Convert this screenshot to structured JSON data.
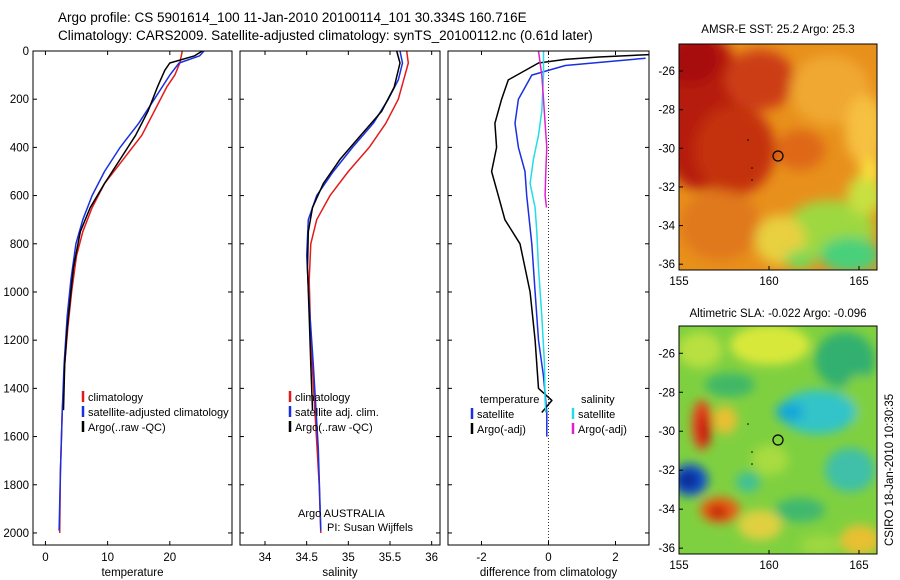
{
  "header": {
    "line1": "Argo profile: CS 5901614_100 11-Jan-2010 20100114_101 30.334S 160.716E",
    "line2": "Climatology: CARS2009. Satellite-adjusted climatology: synTS_20100112.nc (0.61d later)"
  },
  "colors": {
    "climatology": "#e31a1c",
    "satellite": "#1a2fe0",
    "argo": "#000000",
    "sal_satellite": "#22dde6",
    "sal_argo": "#e020d0"
  },
  "chart_data": [
    {
      "type": "line",
      "id": "temperature",
      "xlabel": "temperature",
      "ylabel": "",
      "xlim": [
        -2,
        30
      ],
      "ylim": [
        2050,
        0
      ],
      "y_reversed": true,
      "xticks": [
        "0",
        "10",
        "20"
      ],
      "yticks": [
        "0",
        "200",
        "400",
        "600",
        "800",
        "1000",
        "1200",
        "1400",
        "1600",
        "1800",
        "2000"
      ],
      "legend": [
        "climatology",
        "satellite-adjusted climatology",
        "Argo(..raw -QC)"
      ],
      "series": [
        {
          "name": "climatology",
          "color": "#e31a1c",
          "x": [
            22,
            21.6,
            20.8,
            19.5,
            17.5,
            15.5,
            12.5,
            9.5,
            7.5,
            6,
            5,
            4.2,
            3.6,
            3.1,
            2.7,
            2.4,
            2.3
          ],
          "y": [
            0,
            50,
            100,
            150,
            250,
            350,
            450,
            550,
            650,
            750,
            850,
            1000,
            1150,
            1300,
            1500,
            1750,
            2000
          ]
        },
        {
          "name": "satellite-adjusted climatology",
          "color": "#1a2fe0",
          "x": [
            25.5,
            24.8,
            21.5,
            20,
            17.5,
            15,
            12,
            9.5,
            7.5,
            6,
            4.9,
            4.1,
            3.5,
            3.0,
            2.7,
            2.4,
            2.2
          ],
          "y": [
            0,
            20,
            50,
            100,
            200,
            300,
            400,
            500,
            600,
            700,
            800,
            950,
            1100,
            1300,
            1500,
            1750,
            1990
          ]
        },
        {
          "name": "Argo(..raw -QC)",
          "color": "#000000",
          "x": [
            25.2,
            24,
            20,
            19.2,
            18,
            16.5,
            14.5,
            12,
            9.5,
            7.2,
            5.6,
            4.5,
            3.5,
            3.1,
            2.9
          ],
          "y": [
            0,
            20,
            50,
            80,
            150,
            250,
            350,
            450,
            550,
            650,
            750,
            900,
            1150,
            1300,
            1490
          ]
        }
      ]
    },
    {
      "type": "line",
      "id": "salinity",
      "xlabel": "salinity",
      "ylabel": "",
      "xlim": [
        33.7,
        36.1
      ],
      "ylim": [
        2050,
        0
      ],
      "y_reversed": true,
      "xticks": [
        "34",
        "34.5",
        "35",
        "35.5",
        "36"
      ],
      "legend": [
        "climatology",
        "satellite adj. clim.",
        "Argo(..raw -QC)"
      ],
      "annotation": [
        "Argo AUSTRALIA",
        "PI: Susan Wijffels"
      ],
      "series": [
        {
          "name": "climatology",
          "color": "#e31a1c",
          "x": [
            35.7,
            35.72,
            35.68,
            35.6,
            35.45,
            35.25,
            35.0,
            34.78,
            34.62,
            34.55,
            34.53,
            34.55,
            34.6,
            34.65,
            34.67
          ],
          "y": [
            0,
            50,
            100,
            200,
            300,
            400,
            500,
            600,
            700,
            800,
            950,
            1200,
            1500,
            1800,
            2000
          ]
        },
        {
          "name": "satellite adj. clim.",
          "color": "#1a2fe0",
          "x": [
            35.62,
            35.65,
            35.6,
            35.48,
            35.3,
            35.05,
            34.82,
            34.62,
            34.52,
            34.5,
            34.53,
            34.58,
            34.64,
            34.67
          ],
          "y": [
            0,
            50,
            120,
            200,
            300,
            400,
            500,
            600,
            700,
            850,
            1050,
            1300,
            1650,
            1990
          ]
        },
        {
          "name": "Argo(..raw -QC)",
          "color": "#000000",
          "x": [
            35.58,
            35.62,
            35.55,
            35.4,
            35.15,
            34.9,
            34.7,
            34.57,
            34.52,
            34.51,
            34.53,
            34.55,
            34.57
          ],
          "y": [
            0,
            50,
            150,
            250,
            350,
            450,
            550,
            650,
            750,
            900,
            1100,
            1300,
            1490
          ]
        }
      ]
    },
    {
      "type": "line",
      "id": "difference",
      "xlabel": "difference from climatology",
      "ylabel": "",
      "xlim": [
        -3,
        3
      ],
      "ylim": [
        2050,
        0
      ],
      "y_reversed": true,
      "xticks": [
        "-2",
        "0",
        "2"
      ],
      "legend_temperature": [
        "temperature",
        "satellite",
        "Argo(-adj)"
      ],
      "legend_salinity": [
        "salinity",
        "satellite",
        "Argo(-adj)"
      ],
      "series": [
        {
          "name": "temperature satellite",
          "color": "#1a2fe0",
          "x": [
            2.9,
            0.5,
            -0.5,
            -0.9,
            -1.0,
            -0.9,
            -0.7,
            -0.65,
            -0.5,
            -0.4,
            -0.3,
            -0.15,
            -0.05,
            -0.05
          ],
          "y": [
            30,
            60,
            100,
            200,
            300,
            400,
            500,
            600,
            800,
            1000,
            1200,
            1350,
            1500,
            1600
          ]
        },
        {
          "name": "temperature Argo(-adj)",
          "color": "#000000",
          "x": [
            3.0,
            1.5,
            0.5,
            -0.3,
            -1.2,
            -1.4,
            -1.6,
            -1.55,
            -1.7,
            -1.5,
            -1.3,
            -0.85,
            -0.55,
            -0.4,
            -0.3,
            0.1,
            -0.2
          ],
          "y": [
            15,
            25,
            35,
            50,
            120,
            200,
            300,
            400,
            500,
            600,
            700,
            800,
            1000,
            1200,
            1400,
            1450,
            1500
          ]
        },
        {
          "name": "salinity satellite",
          "color": "#22dde6",
          "x": [
            -0.15,
            -0.15,
            -0.2,
            -0.3,
            -0.45,
            -0.55,
            -0.4,
            -0.35,
            -0.3,
            -0.2,
            -0.12,
            -0.1,
            -0.08
          ],
          "y": [
            0,
            100,
            250,
            350,
            450,
            550,
            650,
            750,
            900,
            1100,
            1300,
            1450,
            1500
          ]
        },
        {
          "name": "salinity Argo(-adj)",
          "color": "#e020d0",
          "x": [
            -0.3,
            -0.2,
            -0.15,
            -0.1,
            -0.05,
            -0.08,
            -0.1,
            -0.06
          ],
          "y": [
            0,
            100,
            200,
            300,
            400,
            500,
            600,
            650
          ]
        }
      ]
    },
    {
      "type": "heatmap",
      "id": "sst",
      "title": "AMSR-E SST: 25.2 Argo: 25.3",
      "xlim": [
        155,
        166
      ],
      "ylim": [
        -36.3,
        -24.6
      ],
      "xticks": [
        "155",
        "160",
        "165"
      ],
      "yticks": [
        "-26",
        "-28",
        "-30",
        "-32",
        "-34",
        "-36"
      ],
      "float_position": [
        160.716,
        -30.334
      ]
    },
    {
      "type": "heatmap",
      "id": "sla",
      "title": "Altimetric SLA: -0.022 Argo: -0.096",
      "xlim": [
        155,
        166
      ],
      "ylim": [
        -36.3,
        -24.6
      ],
      "xticks": [
        "155",
        "160",
        "165"
      ],
      "yticks": [
        "-26",
        "-28",
        "-30",
        "-32",
        "-34",
        "-36"
      ],
      "float_position": [
        160.716,
        -30.334
      ]
    }
  ],
  "footer": {
    "stamp": "CSIRO 18-Jan-2010 10:30:35"
  }
}
